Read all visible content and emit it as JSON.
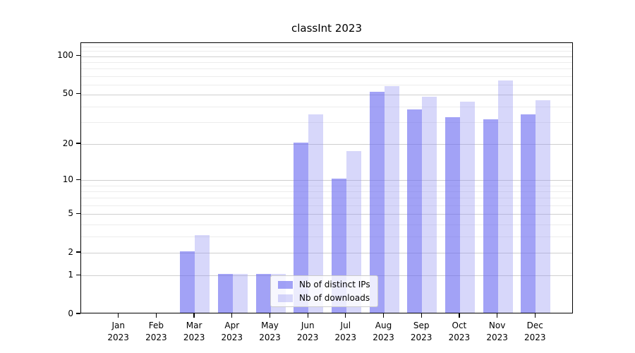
{
  "chart_data": {
    "type": "bar",
    "title": "classInt 2023",
    "categories": [
      {
        "month": "Jan",
        "year": "2023"
      },
      {
        "month": "Feb",
        "year": "2023"
      },
      {
        "month": "Mar",
        "year": "2023"
      },
      {
        "month": "Apr",
        "year": "2023"
      },
      {
        "month": "May",
        "year": "2023"
      },
      {
        "month": "Jun",
        "year": "2023"
      },
      {
        "month": "Jul",
        "year": "2023"
      },
      {
        "month": "Aug",
        "year": "2023"
      },
      {
        "month": "Sep",
        "year": "2023"
      },
      {
        "month": "Oct",
        "year": "2023"
      },
      {
        "month": "Nov",
        "year": "2023"
      },
      {
        "month": "Dec",
        "year": "2023"
      }
    ],
    "series": [
      {
        "name": "Nb of distinct IPs",
        "color": "rgba(105,105,240,0.62)",
        "values": [
          0,
          0,
          2,
          1,
          1,
          20,
          10,
          51,
          37,
          32,
          31,
          34
        ]
      },
      {
        "name": "Nb of downloads",
        "color": "rgba(145,145,242,0.36)",
        "values": [
          0,
          0,
          3,
          1,
          1,
          34,
          17,
          57,
          47,
          43,
          63,
          44
        ]
      }
    ],
    "yscale": "log1p",
    "ylim": [
      0,
      127
    ],
    "y_major_ticks": [
      0,
      1,
      2,
      5,
      10,
      20,
      50,
      100
    ],
    "y_minor_ticks": [
      3,
      4,
      6,
      7,
      8,
      9,
      30,
      40,
      60,
      70,
      80,
      90,
      110,
      120
    ],
    "grid": true,
    "legend_position": "bottom-center",
    "colors": {
      "axis": "#000000",
      "grid_major": "#cfcfcf",
      "grid_minor": "#ececec",
      "bar_distinct_ips": "#a4a4f5",
      "bar_downloads": "#d8d8fb"
    }
  }
}
